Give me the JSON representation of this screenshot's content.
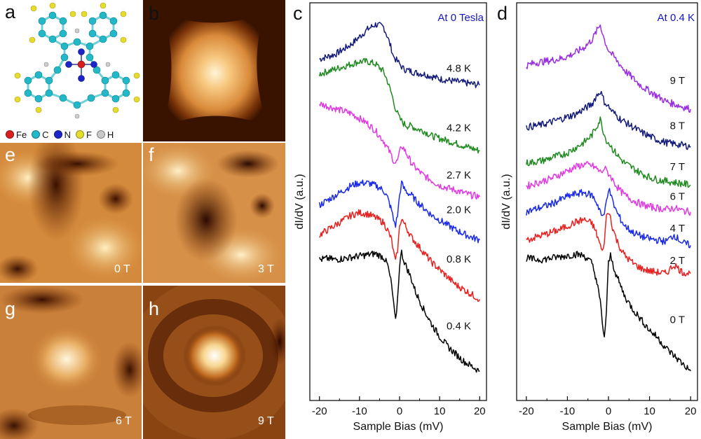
{
  "panels": {
    "a": {
      "letter": "a"
    },
    "b": {
      "letter": "b"
    },
    "e": {
      "letter": "e",
      "field": "0 T"
    },
    "f": {
      "letter": "f",
      "field": "3 T"
    },
    "g": {
      "letter": "g",
      "field": "6 T"
    },
    "h": {
      "letter": "h",
      "field": "9 T"
    }
  },
  "molecule_legend": [
    {
      "symbol": "Fe",
      "color": "#d81f1f"
    },
    {
      "symbol": "C",
      "color": "#22b8c8"
    },
    {
      "symbol": "N",
      "color": "#1b24c8"
    },
    {
      "symbol": "F",
      "color": "#e6dc2e"
    },
    {
      "symbol": "H",
      "color": "#c8c8c8"
    }
  ],
  "colors": {
    "annotation": "#1515c8"
  },
  "chart_data": [
    {
      "panel": "c",
      "type": "line",
      "annotation": "At 0 Tesla",
      "xlabel": "Sample Bias (mV)",
      "ylabel": "dI/dV (a.u.)",
      "xlim": [
        -21,
        21
      ],
      "xticks": [
        -20,
        -10,
        0,
        10,
        20
      ],
      "x": [
        -20,
        -18,
        -16,
        -14,
        -12,
        -10,
        -8,
        -6,
        -4,
        -3,
        -2,
        -1.5,
        -1,
        -0.5,
        0,
        0.5,
        1,
        2,
        3,
        4,
        6,
        8,
        10,
        12,
        14,
        16,
        18,
        20
      ],
      "series": [
        {
          "name": "4.8 K",
          "color": "#141a7a",
          "values": [
            7.5,
            7.6,
            7.7,
            7.9,
            8.1,
            8.4,
            8.7,
            8.9,
            8.8,
            8.4,
            7.9,
            7.6,
            7.5,
            7.4,
            7.3,
            7.2,
            7.1,
            7.05,
            7.0,
            6.95,
            6.9,
            6.8,
            6.7,
            6.65,
            6.6,
            6.55,
            6.5,
            6.45
          ]
        },
        {
          "name": "4.2 K",
          "color": "#1f8a1f",
          "values": [
            6.9,
            7.0,
            7.1,
            7.2,
            7.3,
            7.4,
            7.4,
            7.3,
            7.0,
            6.6,
            6.1,
            5.8,
            5.5,
            5.3,
            5.1,
            5.0,
            4.9,
            4.8,
            4.8,
            4.7,
            4.6,
            4.4,
            4.3,
            4.2,
            4.1,
            4.0,
            3.9,
            3.8
          ]
        },
        {
          "name": "2.7 K",
          "color": "#e23ae2",
          "values": [
            5.7,
            5.6,
            5.5,
            5.4,
            5.3,
            5.1,
            4.9,
            4.6,
            4.2,
            3.9,
            3.6,
            3.4,
            3.3,
            3.4,
            3.7,
            4.0,
            3.9,
            3.6,
            3.3,
            3.1,
            2.8,
            2.6,
            2.4,
            2.3,
            2.2,
            2.1,
            2.0,
            1.95
          ]
        },
        {
          "name": "2.0 K",
          "color": "#1a2ae8",
          "values": [
            1.6,
            1.8,
            2.0,
            2.2,
            2.4,
            2.5,
            2.5,
            2.4,
            2.2,
            1.9,
            1.4,
            1.0,
            0.8,
            1.2,
            2.0,
            2.5,
            2.3,
            2.1,
            2.0,
            1.8,
            1.5,
            1.2,
            1.0,
            0.8,
            0.6,
            0.45,
            0.3,
            0.2
          ]
        },
        {
          "name": "0.8 K",
          "color": "#e82020",
          "values": [
            0.4,
            0.6,
            0.8,
            1.0,
            1.2,
            1.3,
            1.25,
            1.1,
            0.9,
            0.6,
            0.2,
            -0.3,
            -0.7,
            -0.2,
            0.7,
            1.1,
            0.9,
            0.6,
            0.3,
            0.1,
            -0.3,
            -0.7,
            -1.0,
            -1.3,
            -1.6,
            -1.8,
            -2.0,
            -2.2
          ]
        },
        {
          "name": "0.4 K",
          "color": "#000000",
          "values": [
            -0.6,
            -0.55,
            -0.6,
            -0.55,
            -0.5,
            -0.45,
            -0.4,
            -0.35,
            -0.5,
            -0.8,
            -1.6,
            -2.4,
            -3.1,
            -2.2,
            -0.8,
            -0.3,
            -0.6,
            -1.0,
            -1.4,
            -1.9,
            -2.6,
            -3.2,
            -3.7,
            -4.1,
            -4.4,
            -4.7,
            -4.9,
            -5.1
          ]
        }
      ]
    },
    {
      "panel": "d",
      "type": "line",
      "annotation": "At 0.4 K",
      "xlabel": "Sample Bias (mV)",
      "ylabel": "dI/dV (a.u.)",
      "xlim": [
        -21,
        21
      ],
      "xticks": [
        -20,
        -10,
        0,
        10,
        20
      ],
      "x": [
        -20,
        -18,
        -16,
        -14,
        -12,
        -10,
        -8,
        -6,
        -4,
        -3,
        -2,
        -1.5,
        -1,
        -0.5,
        0,
        0.5,
        1,
        2,
        3,
        4,
        6,
        8,
        10,
        12,
        14,
        16,
        18,
        20
      ],
      "series": [
        {
          "name": "9 T",
          "color": "#9a2ee0",
          "values": [
            8.0,
            8.1,
            8.15,
            8.2,
            8.25,
            8.35,
            8.5,
            8.7,
            9.0,
            9.3,
            9.6,
            9.3,
            9.0,
            8.8,
            8.6,
            8.5,
            8.4,
            8.2,
            8.0,
            7.8,
            7.5,
            7.2,
            7.0,
            6.8,
            6.6,
            6.5,
            6.4,
            6.3
          ]
        },
        {
          "name": "8 T",
          "color": "#141a7a",
          "values": [
            5.6,
            5.65,
            5.7,
            5.8,
            5.9,
            6.0,
            6.1,
            6.3,
            6.5,
            6.8,
            7.0,
            6.8,
            6.6,
            6.5,
            6.4,
            6.3,
            6.2,
            6.05,
            5.9,
            5.8,
            5.6,
            5.4,
            5.25,
            5.1,
            5.0,
            4.95,
            4.9,
            4.85
          ]
        },
        {
          "name": "7 T",
          "color": "#1f8a1f",
          "values": [
            4.2,
            4.25,
            4.3,
            4.4,
            4.5,
            4.6,
            4.8,
            5.0,
            5.3,
            5.6,
            5.9,
            5.6,
            5.3,
            5.1,
            5.0,
            4.9,
            4.75,
            4.55,
            4.35,
            4.2,
            4.0,
            3.8,
            3.65,
            3.55,
            3.5,
            3.45,
            3.4,
            3.35
          ]
        },
        {
          "name": "6 T",
          "color": "#e23ae2",
          "values": [
            3.3,
            3.4,
            3.5,
            3.6,
            3.75,
            3.9,
            4.05,
            4.15,
            4.1,
            4.0,
            3.85,
            3.9,
            4.0,
            3.9,
            3.8,
            3.7,
            3.55,
            3.3,
            3.1,
            2.95,
            2.75,
            2.6,
            2.5,
            2.45,
            2.4,
            2.45,
            2.35,
            2.3
          ]
        },
        {
          "name": "4 T",
          "color": "#1a2ae8",
          "values": [
            2.3,
            2.4,
            2.5,
            2.6,
            2.75,
            2.9,
            3.0,
            3.05,
            2.95,
            2.7,
            2.35,
            2.05,
            2.2,
            2.8,
            3.2,
            3.0,
            2.7,
            2.3,
            2.0,
            1.75,
            1.5,
            1.35,
            1.25,
            1.2,
            1.15,
            1.4,
            1.1,
            1.0
          ]
        },
        {
          "name": "2 T",
          "color": "#e82020",
          "values": [
            1.2,
            1.3,
            1.4,
            1.5,
            1.6,
            1.75,
            1.9,
            2.0,
            1.85,
            1.5,
            1.0,
            0.7,
            1.2,
            2.1,
            2.3,
            2.1,
            1.7,
            1.2,
            0.85,
            0.6,
            0.3,
            0.1,
            0.0,
            -0.05,
            -0.1,
            0.25,
            -0.05,
            -0.1
          ]
        },
        {
          "name": "0 T",
          "color": "#000000",
          "values": [
            0.5,
            0.45,
            0.45,
            0.5,
            0.55,
            0.6,
            0.65,
            0.6,
            0.3,
            -0.3,
            -1.2,
            -2.0,
            -2.6,
            -1.6,
            0.3,
            0.6,
            0.3,
            -0.2,
            -0.6,
            -1.0,
            -1.5,
            -1.9,
            -2.3,
            -2.6,
            -3.0,
            -3.3,
            -3.6,
            -3.9
          ]
        }
      ]
    }
  ]
}
